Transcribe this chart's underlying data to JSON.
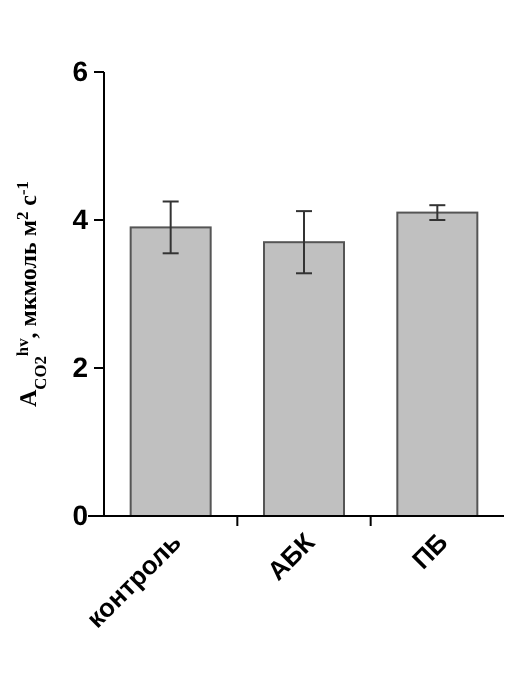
{
  "chart_data": {
    "type": "bar",
    "ylabel": "A$_{CO2}$$^{hv}$, мкмоль м$^{2}$ с$^{-1}$",
    "categories": [
      "контроль",
      "АБК",
      "ПБ"
    ],
    "values": [
      3.9,
      3.7,
      4.1
    ],
    "errors": [
      0.35,
      0.42,
      0.1
    ],
    "color": "#c0c0c0",
    "ylim": [
      0,
      6
    ],
    "yticks": [
      0,
      2,
      4,
      6
    ],
    "grid": false
  }
}
